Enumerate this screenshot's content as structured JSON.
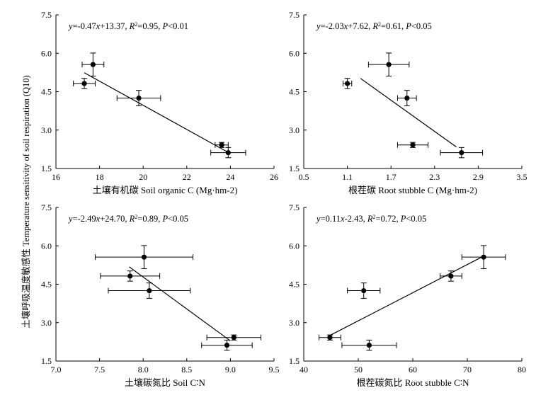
{
  "figure": {
    "ylabel": "土壤呼吸温度敏感性 Temperature sensitivity of soil respiration (Q10)"
  },
  "chart_data": [
    {
      "type": "scatter",
      "title": "",
      "xlabel": "土壤有机碳 Soil organic C (Mg·hm-2)",
      "ylabel": "",
      "xlim": [
        16,
        26
      ],
      "ylim": [
        1.5,
        7.5
      ],
      "xticks": [
        "16",
        "18",
        "20",
        "22",
        "24",
        "26"
      ],
      "yticks": [
        "1.5",
        "3.0",
        "4.5",
        "6.0",
        "7.5"
      ],
      "equation": {
        "y": "y",
        "body": "=-0.47",
        "x": "x",
        "rest": "+13.37, ",
        "r": "R",
        "sup": "2",
        "r_val": "=0.95, ",
        "p": "P",
        "p_val": "<0.01"
      },
      "points": [
        {
          "x": 17.3,
          "y": 4.82,
          "xerr": 0.5,
          "yerr": 0.2
        },
        {
          "x": 17.7,
          "y": 5.56,
          "xerr": 0.5,
          "yerr": 0.45
        },
        {
          "x": 19.8,
          "y": 4.25,
          "xerr": 1.0,
          "yerr": 0.3
        },
        {
          "x": 23.6,
          "y": 2.42,
          "xerr": 0.3,
          "yerr": 0.1
        },
        {
          "x": 23.9,
          "y": 2.12,
          "xerr": 0.8,
          "yerr": 0.2
        }
      ],
      "fit": {
        "x": [
          17.3,
          23.9
        ],
        "y": [
          5.24,
          2.13
        ]
      }
    },
    {
      "type": "scatter",
      "title": "",
      "xlabel": "根茬碳 Root stubble C (Mg·hm-2)",
      "ylabel": "",
      "xlim": [
        0.5,
        3.5
      ],
      "ylim": [
        1.5,
        7.5
      ],
      "xticks": [
        "0.5",
        "1.1",
        "1.7",
        "2.3",
        "2.9",
        "3.5"
      ],
      "yticks": [
        "1.5",
        "3.0",
        "4.5",
        "6.0",
        "7.5"
      ],
      "equation": {
        "y": "y",
        "body": "=-2.03",
        "x": "x",
        "rest": "+7.62, ",
        "r": "R",
        "sup": "2",
        "r_val": "=0.61, ",
        "p": "P",
        "p_val": "<0.05"
      },
      "points": [
        {
          "x": 1.1,
          "y": 4.82,
          "xerr": 0.06,
          "yerr": 0.2
        },
        {
          "x": 1.67,
          "y": 5.56,
          "xerr": 0.28,
          "yerr": 0.45
        },
        {
          "x": 1.92,
          "y": 4.25,
          "xerr": 0.13,
          "yerr": 0.3
        },
        {
          "x": 2.0,
          "y": 2.42,
          "xerr": 0.21,
          "yerr": 0.1
        },
        {
          "x": 2.67,
          "y": 2.12,
          "xerr": 0.29,
          "yerr": 0.2
        }
      ],
      "fit": {
        "x": [
          1.28,
          2.6
        ],
        "y": [
          5.02,
          2.34
        ]
      }
    },
    {
      "type": "scatter",
      "title": "",
      "xlabel": "土壤碳氮比 Soil C∶N",
      "ylabel": "",
      "xlim": [
        7.0,
        9.5
      ],
      "ylim": [
        1.5,
        7.5
      ],
      "xticks": [
        "7.0",
        "7.5",
        "8.0",
        "8.5",
        "9.0",
        "9.5"
      ],
      "yticks": [
        "1.5",
        "3.0",
        "4.5",
        "6.0",
        "7.5"
      ],
      "equation": {
        "y": "y",
        "body": "=-2.49",
        "x": "x",
        "rest": "+24.70, ",
        "r": "R",
        "sup": "2",
        "r_val": "=0.89, ",
        "p": "P",
        "p_val": "<0.05"
      },
      "points": [
        {
          "x": 8.01,
          "y": 5.56,
          "xerr": 0.56,
          "yerr": 0.45
        },
        {
          "x": 7.85,
          "y": 4.82,
          "xerr": 0.34,
          "yerr": 0.2
        },
        {
          "x": 8.07,
          "y": 4.25,
          "xerr": 0.47,
          "yerr": 0.3
        },
        {
          "x": 9.04,
          "y": 2.42,
          "xerr": 0.31,
          "yerr": 0.1
        },
        {
          "x": 8.96,
          "y": 2.12,
          "xerr": 0.29,
          "yerr": 0.2
        }
      ],
      "fit": {
        "x": [
          7.84,
          9.0
        ],
        "y": [
          5.18,
          2.29
        ]
      }
    },
    {
      "type": "scatter",
      "title": "",
      "xlabel": "根茬碳氮比 Root stubble C∶N",
      "ylabel": "",
      "xlim": [
        40,
        80
      ],
      "ylim": [
        1.5,
        7.5
      ],
      "xticks": [
        "40",
        "50",
        "60",
        "70",
        "80"
      ],
      "yticks": [
        "1.5",
        "3.0",
        "4.5",
        "6.0",
        "7.5"
      ],
      "equation": {
        "y": "y",
        "body": "=0.11",
        "x": "x",
        "rest": "-2.43, ",
        "r": "R",
        "sup": "2",
        "r_val": "=0.72, ",
        "p": "P",
        "p_val": "<0.05"
      },
      "points": [
        {
          "x": 44.8,
          "y": 2.42,
          "xerr": 2.0,
          "yerr": 0.1
        },
        {
          "x": 51.0,
          "y": 4.25,
          "xerr": 3.0,
          "yerr": 0.3
        },
        {
          "x": 52.0,
          "y": 2.12,
          "xerr": 5.0,
          "yerr": 0.2
        },
        {
          "x": 67.0,
          "y": 4.82,
          "xerr": 2.0,
          "yerr": 0.2
        },
        {
          "x": 73.0,
          "y": 5.56,
          "xerr": 4.0,
          "yerr": 0.45
        }
      ],
      "fit": {
        "x": [
          44.8,
          73.0
        ],
        "y": [
          2.5,
          5.6
        ]
      }
    }
  ]
}
